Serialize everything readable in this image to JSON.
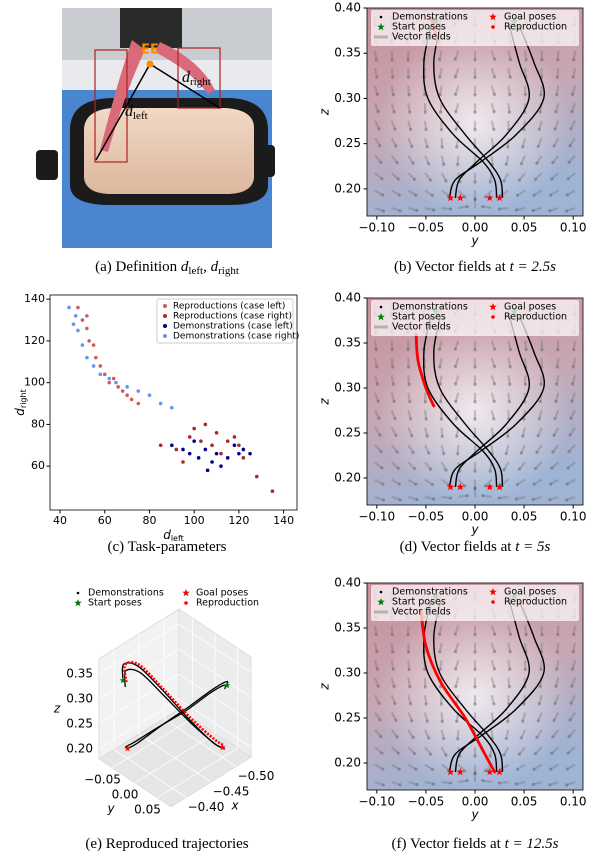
{
  "chart_data": [
    {
      "type": "photo",
      "annotations": {
        "ee": "EE",
        "right": [
          "d",
          "right"
        ],
        "left": [
          "d",
          "left"
        ]
      },
      "caption": [
        "(a) Definition ",
        "d",
        "left",
        ", ",
        "d",
        "right"
      ]
    },
    {
      "type": "field",
      "xlabel": "y",
      "ylabel": "z",
      "xlim": [
        -0.11,
        0.11
      ],
      "ylim": [
        0.17,
        0.4
      ],
      "xticks": [
        {
          "value": -0.1,
          "label": "−0.10"
        },
        {
          "value": -0.05,
          "label": "−0.05"
        },
        {
          "value": 0,
          "label": "0.00"
        },
        {
          "value": 0.05,
          "label": "0.05"
        },
        {
          "value": 0.1,
          "label": "0.10"
        }
      ],
      "yticks": [
        {
          "value": 0.2,
          "label": "0.20"
        },
        {
          "value": 0.25,
          "label": "0.25"
        },
        {
          "value": 0.3,
          "label": "0.30"
        },
        {
          "value": 0.35,
          "label": "0.35"
        },
        {
          "value": 0.4,
          "label": "0.40"
        }
      ],
      "series": [
        {
          "name": "Demonstrations",
          "color": "#000000",
          "lines": [
            {
              "x": [
                -0.045,
                -0.052,
                -0.048,
                -0.022,
                0.008,
                0.02,
                0.022
              ],
              "y": [
                0.38,
                0.34,
                0.3,
                0.26,
                0.23,
                0.21,
                0.19
              ]
            },
            {
              "x": [
                -0.035,
                -0.042,
                -0.036,
                -0.01,
                0.014,
                0.026,
                0.028
              ],
              "y": [
                0.38,
                0.34,
                0.3,
                0.26,
                0.23,
                0.21,
                0.19
              ]
            },
            {
              "x": [
                0.035,
                0.045,
                0.055,
                0.032,
                0.002,
                -0.016,
                -0.02
              ],
              "y": [
                0.38,
                0.34,
                0.3,
                0.26,
                0.23,
                0.21,
                0.19
              ]
            },
            {
              "x": [
                0.045,
                0.06,
                0.07,
                0.042,
                0.006,
                -0.02,
                -0.026
              ],
              "y": [
                0.38,
                0.34,
                0.3,
                0.26,
                0.23,
                0.21,
                0.19
              ]
            }
          ]
        },
        {
          "name": "Start poses",
          "color": "#008000",
          "marker": "star",
          "x": [
            -0.04,
            0.04
          ],
          "y": [
            0.385,
            0.385
          ]
        },
        {
          "name": "Vector fields",
          "color": "#9e9e9e"
        },
        {
          "name": "Goal poses",
          "color": "#ff0000",
          "marker": "star",
          "x": [
            -0.025,
            -0.015,
            0.015,
            0.025
          ],
          "y": [
            0.19,
            0.19,
            0.19,
            0.19
          ]
        },
        {
          "name": "Reproduction",
          "color": "#ff0000",
          "x": [
            -0.045,
            -0.042,
            -0.04
          ],
          "y": [
            0.39,
            0.38,
            0.37
          ]
        }
      ],
      "caption": [
        "(b) Vector fields at ",
        "t = 2.5s"
      ]
    },
    {
      "type": "scatter",
      "xlabel": [
        "d",
        "left"
      ],
      "ylabel": [
        "d",
        "right"
      ],
      "xlim": [
        35.5,
        146
      ],
      "ylim": [
        39,
        142
      ],
      "xticks": [
        40,
        60,
        80,
        100,
        120,
        140
      ],
      "yticks": [
        60,
        80,
        100,
        120,
        140
      ],
      "series": [
        {
          "name": "Reproductions (case left)",
          "color": "#cd5c5c",
          "x": [
            48,
            50,
            52,
            53,
            55,
            56,
            58,
            60,
            62,
            64,
            66,
            68,
            70,
            72,
            75,
            52
          ],
          "y": [
            136,
            130,
            126,
            120,
            118,
            112,
            108,
            104,
            100,
            102,
            98,
            96,
            94,
            92,
            90,
            132
          ]
        },
        {
          "name": "Reproductions (case right)",
          "color": "#a52a2a",
          "x": [
            85,
            92,
            98,
            100,
            103,
            105,
            108,
            110,
            112,
            115,
            118,
            120,
            122,
            128,
            135,
            95
          ],
          "y": [
            70,
            68,
            74,
            78,
            72,
            80,
            70,
            76,
            66,
            72,
            74,
            70,
            64,
            55,
            48,
            62
          ]
        },
        {
          "name": "Demonstrations (case left)",
          "color": "#00008b",
          "x": [
            90,
            95,
            98,
            102,
            105,
            108,
            110,
            112,
            115,
            118,
            120,
            122,
            125,
            100,
            106
          ],
          "y": [
            70,
            68,
            66,
            64,
            68,
            62,
            66,
            60,
            64,
            70,
            66,
            68,
            66,
            72,
            58
          ]
        },
        {
          "name": "Demonstrations (case right)",
          "color": "#6495ed",
          "x": [
            44,
            46,
            48,
            50,
            52,
            55,
            58,
            62,
            65,
            70,
            75,
            80,
            85,
            90,
            47
          ],
          "y": [
            136,
            128,
            125,
            118,
            112,
            108,
            104,
            102,
            100,
            98,
            96,
            94,
            90,
            88,
            132
          ]
        }
      ],
      "caption": [
        "(c) Task-parameters"
      ]
    },
    {
      "type": "field",
      "xlabel": "y",
      "ylabel": "z",
      "xlim": [
        -0.11,
        0.11
      ],
      "ylim": [
        0.17,
        0.4
      ],
      "xticks": [
        {
          "value": -0.1,
          "label": "−0.10"
        },
        {
          "value": -0.05,
          "label": "−0.05"
        },
        {
          "value": 0,
          "label": "0.00"
        },
        {
          "value": 0.05,
          "label": "0.05"
        },
        {
          "value": 0.1,
          "label": "0.10"
        }
      ],
      "yticks": [
        {
          "value": 0.2,
          "label": "0.20"
        },
        {
          "value": 0.25,
          "label": "0.25"
        },
        {
          "value": 0.3,
          "label": "0.30"
        },
        {
          "value": 0.35,
          "label": "0.35"
        },
        {
          "value": 0.4,
          "label": "0.40"
        }
      ],
      "series": [
        {
          "name": "Demonstrations",
          "color": "#000000",
          "lines": [
            {
              "x": [
                -0.045,
                -0.052,
                -0.048,
                -0.022,
                0.008,
                0.02,
                0.022
              ],
              "y": [
                0.38,
                0.34,
                0.3,
                0.26,
                0.23,
                0.21,
                0.19
              ]
            },
            {
              "x": [
                -0.035,
                -0.042,
                -0.036,
                -0.01,
                0.014,
                0.026,
                0.028
              ],
              "y": [
                0.38,
                0.34,
                0.3,
                0.26,
                0.23,
                0.21,
                0.19
              ]
            },
            {
              "x": [
                0.035,
                0.045,
                0.055,
                0.032,
                0.002,
                -0.016,
                -0.02
              ],
              "y": [
                0.38,
                0.34,
                0.3,
                0.26,
                0.23,
                0.21,
                0.19
              ]
            },
            {
              "x": [
                0.045,
                0.06,
                0.07,
                0.042,
                0.006,
                -0.02,
                -0.026
              ],
              "y": [
                0.38,
                0.34,
                0.3,
                0.26,
                0.23,
                0.21,
                0.19
              ]
            }
          ]
        },
        {
          "name": "Start poses",
          "color": "#008000",
          "marker": "star",
          "x": [
            -0.04,
            0.04
          ],
          "y": [
            0.385,
            0.385
          ]
        },
        {
          "name": "Vector fields",
          "color": "#9e9e9e"
        },
        {
          "name": "Goal poses",
          "color": "#ff0000",
          "marker": "star",
          "x": [
            -0.025,
            -0.015,
            0.015,
            0.025
          ],
          "y": [
            0.19,
            0.19,
            0.19,
            0.19
          ]
        },
        {
          "name": "Reproduction",
          "color": "#ff0000",
          "x": [
            -0.06,
            -0.058,
            -0.05,
            -0.042
          ],
          "y": [
            0.36,
            0.33,
            0.3,
            0.28
          ]
        }
      ],
      "caption": [
        "(d) Vector fields at ",
        "t = 5s"
      ]
    },
    {
      "type": "line3d",
      "xlabel": "x",
      "ylabel": "y",
      "zlabel": "z",
      "xlim": [
        -0.53,
        -0.37
      ],
      "ylim": [
        -0.08,
        0.08
      ],
      "zlim": [
        0.18,
        0.38
      ],
      "xticks": [
        {
          "value": -0.5,
          "label": "−0.50"
        },
        {
          "value": -0.45,
          "label": "−0.45"
        },
        {
          "value": -0.4,
          "label": "−0.40"
        }
      ],
      "yticks": [
        {
          "value": -0.05,
          "label": "−0.05"
        },
        {
          "value": 0,
          "label": "0.00"
        },
        {
          "value": 0.05,
          "label": "0.05"
        }
      ],
      "zticks": [
        {
          "value": 0.2,
          "label": "0.20"
        },
        {
          "value": 0.25,
          "label": "0.25"
        },
        {
          "value": 0.3,
          "label": "0.30"
        },
        {
          "value": 0.35,
          "label": "0.35"
        }
      ],
      "series": [
        {
          "name": "Demonstrations",
          "color": "#000000",
          "lines": [
            {
              "x": [
                -0.4,
                -0.41,
                -0.43,
                -0.45,
                -0.47,
                -0.49,
                -0.5
              ],
              "y": [
                -0.06,
                -0.07,
                -0.06,
                -0.03,
                0.01,
                0.04,
                0.05
              ],
              "z": [
                0.33,
                0.35,
                0.34,
                0.3,
                0.25,
                0.21,
                0.2
              ]
            },
            {
              "x": [
                -0.4,
                -0.41,
                -0.43,
                -0.45,
                -0.47,
                -0.49,
                -0.5
              ],
              "y": [
                -0.055,
                -0.065,
                -0.055,
                -0.025,
                0.015,
                0.045,
                0.055
              ],
              "z": [
                0.32,
                0.34,
                0.33,
                0.29,
                0.245,
                0.21,
                0.2
              ]
            },
            {
              "x": [
                -0.5,
                -0.49,
                -0.47,
                -0.45,
                -0.43,
                -0.41,
                -0.4
              ],
              "y": [
                0.06,
                0.07,
                0.06,
                0.03,
                -0.01,
                -0.04,
                -0.05
              ],
              "z": [
                0.33,
                0.35,
                0.34,
                0.3,
                0.25,
                0.21,
                0.2
              ]
            },
            {
              "x": [
                -0.5,
                -0.49,
                -0.47,
                -0.45,
                -0.43,
                -0.41,
                -0.4
              ],
              "y": [
                0.055,
                0.065,
                0.055,
                0.025,
                -0.015,
                -0.045,
                -0.055
              ],
              "z": [
                0.32,
                0.34,
                0.33,
                0.29,
                0.245,
                0.21,
                0.2
              ]
            }
          ]
        },
        {
          "name": "Start poses",
          "color": "#008000",
          "marker": "star",
          "x": [
            -0.4,
            -0.5
          ],
          "y": [
            -0.06,
            0.06
          ],
          "z": [
            0.33,
            0.33
          ]
        },
        {
          "name": "Goal poses",
          "color": "#ff0000",
          "marker": "star",
          "x": [
            -0.5,
            -0.4
          ],
          "y": [
            0.05,
            -0.05
          ],
          "z": [
            0.2,
            0.2
          ]
        },
        {
          "name": "Reproduction",
          "color": "#ff0000",
          "x": [
            -0.405,
            -0.415,
            -0.435,
            -0.455,
            -0.475,
            -0.495,
            -0.505
          ],
          "y": [
            -0.058,
            -0.072,
            -0.063,
            -0.032,
            0.008,
            0.038,
            0.048
          ],
          "z": [
            0.325,
            0.345,
            0.338,
            0.296,
            0.248,
            0.212,
            0.2
          ]
        }
      ],
      "caption": [
        "(e) Reproduced trajectories"
      ]
    },
    {
      "type": "field",
      "xlabel": "y",
      "ylabel": "z",
      "xlim": [
        -0.11,
        0.11
      ],
      "ylim": [
        0.17,
        0.4
      ],
      "xticks": [
        {
          "value": -0.1,
          "label": "−0.10"
        },
        {
          "value": -0.05,
          "label": "−0.05"
        },
        {
          "value": 0,
          "label": "0.00"
        },
        {
          "value": 0.05,
          "label": "0.05"
        },
        {
          "value": 0.1,
          "label": "0.10"
        }
      ],
      "yticks": [
        {
          "value": 0.2,
          "label": "0.20"
        },
        {
          "value": 0.25,
          "label": "0.25"
        },
        {
          "value": 0.3,
          "label": "0.30"
        },
        {
          "value": 0.35,
          "label": "0.35"
        },
        {
          "value": 0.4,
          "label": "0.40"
        }
      ],
      "series": [
        {
          "name": "Demonstrations",
          "color": "#000000",
          "lines": [
            {
              "x": [
                -0.045,
                -0.052,
                -0.048,
                -0.022,
                0.008,
                0.02,
                0.022
              ],
              "y": [
                0.38,
                0.34,
                0.3,
                0.26,
                0.23,
                0.21,
                0.19
              ]
            },
            {
              "x": [
                -0.035,
                -0.042,
                -0.036,
                -0.01,
                0.014,
                0.026,
                0.028
              ],
              "y": [
                0.38,
                0.34,
                0.3,
                0.26,
                0.23,
                0.21,
                0.19
              ]
            },
            {
              "x": [
                0.035,
                0.045,
                0.055,
                0.032,
                0.002,
                -0.016,
                -0.02
              ],
              "y": [
                0.38,
                0.34,
                0.3,
                0.26,
                0.23,
                0.21,
                0.19
              ]
            },
            {
              "x": [
                0.045,
                0.06,
                0.07,
                0.042,
                0.006,
                -0.02,
                -0.026
              ],
              "y": [
                0.38,
                0.34,
                0.3,
                0.26,
                0.23,
                0.21,
                0.19
              ]
            }
          ]
        },
        {
          "name": "Start poses",
          "color": "#008000",
          "marker": "star",
          "x": [
            -0.04,
            0.04
          ],
          "y": [
            0.385,
            0.385
          ]
        },
        {
          "name": "Vector fields",
          "color": "#9e9e9e"
        },
        {
          "name": "Goal poses",
          "color": "#ff0000",
          "marker": "star",
          "x": [
            -0.025,
            -0.015,
            0.015,
            0.025
          ],
          "y": [
            0.19,
            0.19,
            0.19,
            0.19
          ]
        },
        {
          "name": "Reproduction",
          "color": "#ff0000",
          "x": [
            -0.055,
            -0.05,
            -0.035,
            -0.01,
            0.01,
            0.02
          ],
          "y": [
            0.37,
            0.33,
            0.29,
            0.25,
            0.21,
            0.19
          ]
        }
      ],
      "caption": [
        "(f) Vector fields at ",
        "t = 12.5s"
      ]
    }
  ]
}
